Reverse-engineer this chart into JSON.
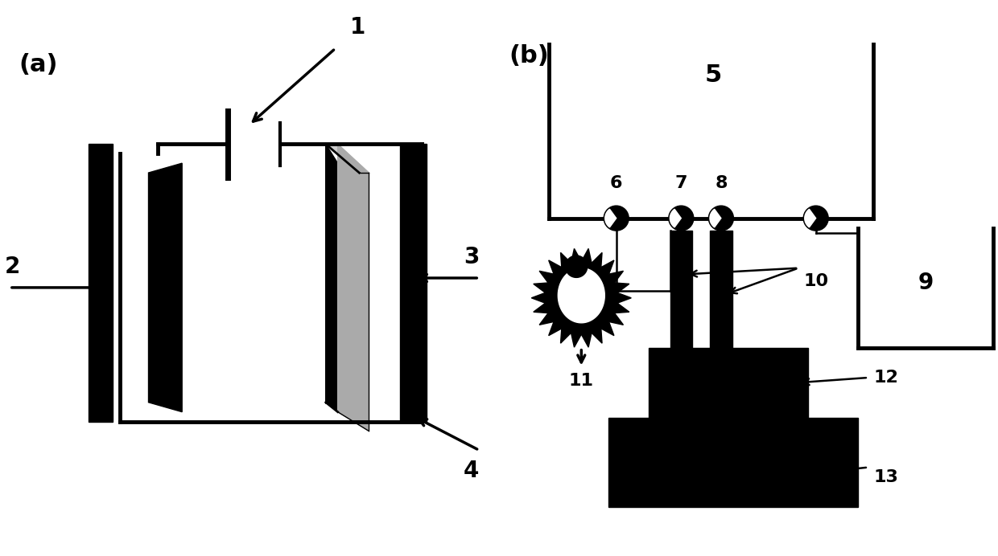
{
  "background_color": "#ffffff",
  "panel_a_label": "(a)",
  "panel_b_label": "(b)",
  "lw_thick": 3.5,
  "lw_medium": 2.5,
  "lw_thin": 1.8
}
